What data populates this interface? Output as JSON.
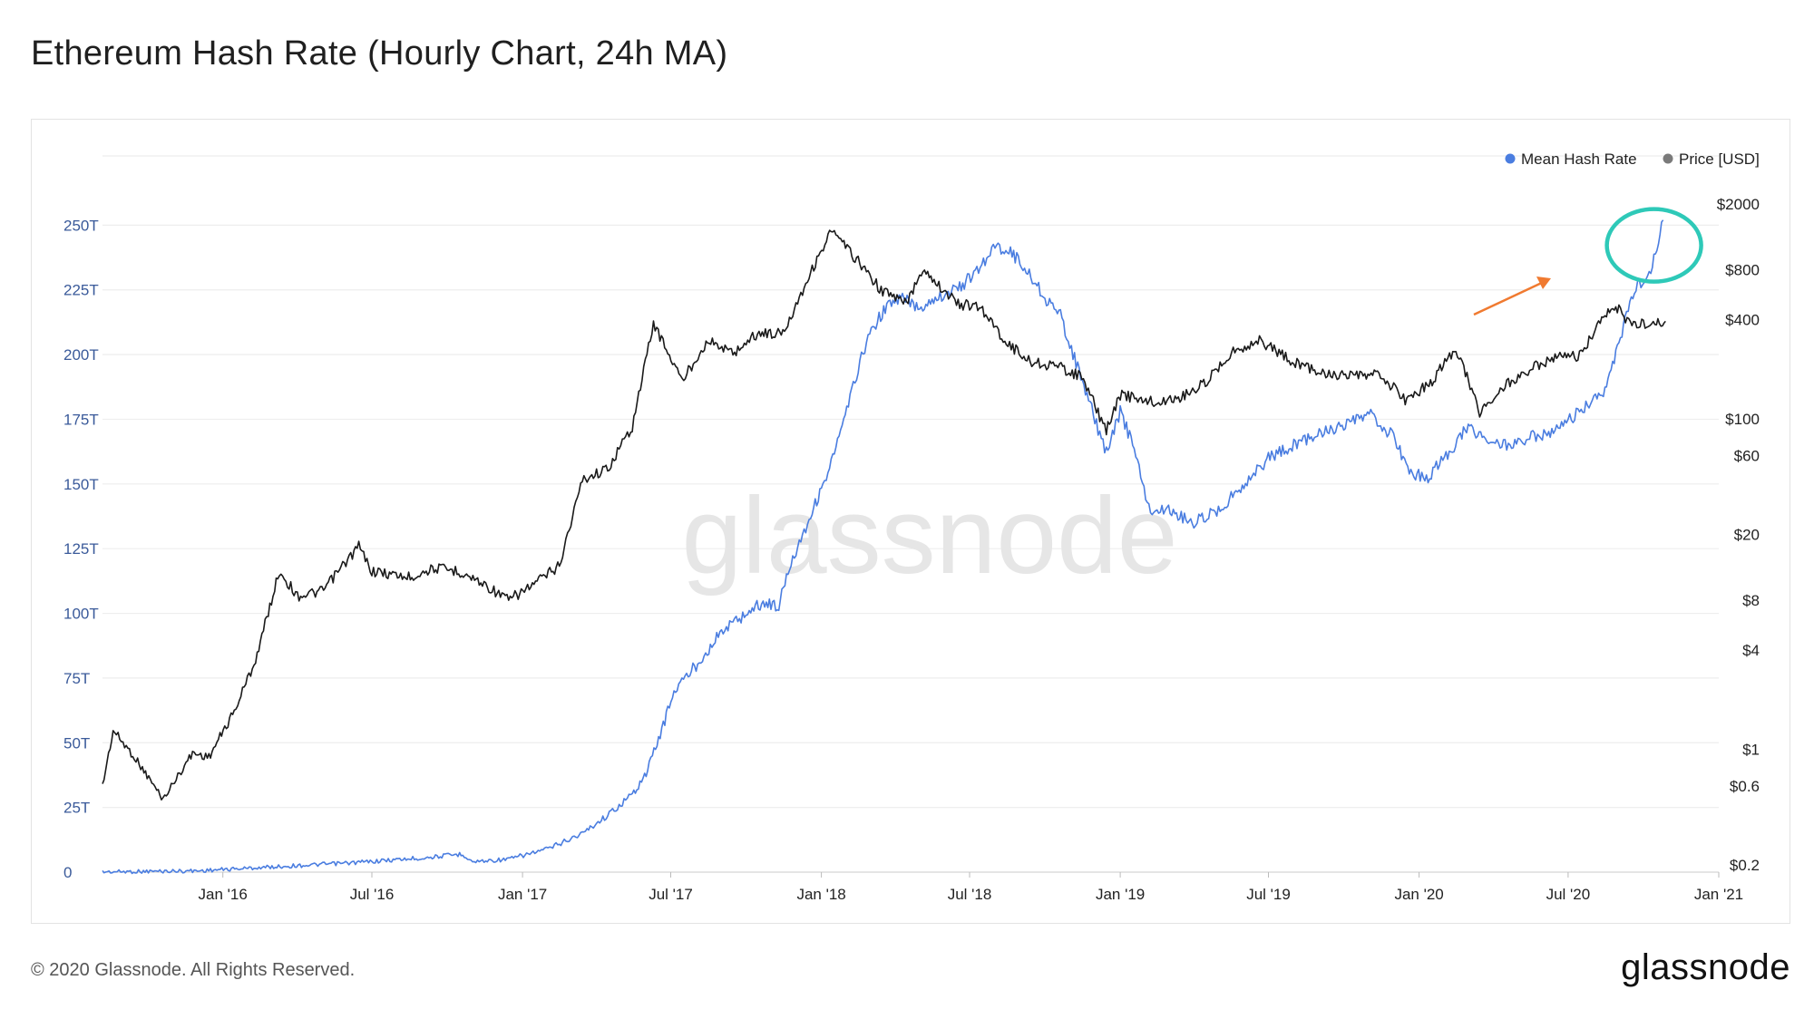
{
  "page": {
    "title": "Ethereum Hash Rate (Hourly Chart, 24h MA)",
    "footer_copyright": "© 2020 Glassnode. All Rights Reserved.",
    "footer_logo": "glassnode",
    "watermark": "glassnode"
  },
  "colors": {
    "hash_rate": "#4a7de0",
    "price": "#1a1a1a",
    "grid": "#eeeeee",
    "left_axis_text": "#3a5a9a",
    "right_axis_text": "#222222",
    "highlight_circle": "#2ec9b8",
    "arrow": "#f07a30"
  },
  "legend": [
    {
      "label": "Mean Hash Rate",
      "color": "#4a7de0"
    },
    {
      "label": "Price [USD]",
      "color": "#7a7a7a"
    }
  ],
  "chart_data": {
    "type": "line",
    "x_axis": {
      "type": "date",
      "range": [
        "2015-08-07",
        "2021-01-01"
      ],
      "ticks": [
        {
          "date": "2016-01-01",
          "label": "Jan '16"
        },
        {
          "date": "2016-07-01",
          "label": "Jul '16"
        },
        {
          "date": "2017-01-01",
          "label": "Jan '17"
        },
        {
          "date": "2017-07-01",
          "label": "Jul '17"
        },
        {
          "date": "2018-01-01",
          "label": "Jan '18"
        },
        {
          "date": "2018-07-01",
          "label": "Jul '18"
        },
        {
          "date": "2019-01-01",
          "label": "Jan '19"
        },
        {
          "date": "2019-07-01",
          "label": "Jul '19"
        },
        {
          "date": "2020-01-01",
          "label": "Jan '20"
        },
        {
          "date": "2020-07-01",
          "label": "Jul '20"
        },
        {
          "date": "2021-01-01",
          "label": "Jan '21"
        }
      ]
    },
    "y_left": {
      "scale": "linear",
      "ylim": [
        0,
        275
      ],
      "ticks": [
        0,
        25,
        50,
        75,
        100,
        125,
        150,
        175,
        200,
        225,
        250
      ],
      "tick_labels": [
        "0",
        "25T",
        "50T",
        "75T",
        "100T",
        "125T",
        "150T",
        "175T",
        "200T",
        "225T",
        "250T"
      ]
    },
    "y_right": {
      "scale": "log",
      "ticks": [
        {
          "value": 0.2,
          "label": "$0.2"
        },
        {
          "value": 0.6,
          "label": "$0.6"
        },
        {
          "value": 1,
          "label": "$1"
        },
        {
          "value": 4,
          "label": "$4"
        },
        {
          "value": 8,
          "label": "$8"
        },
        {
          "value": 20,
          "label": "$20"
        },
        {
          "value": 60,
          "label": "$60"
        },
        {
          "value": 100,
          "label": "$100"
        },
        {
          "value": 400,
          "label": "$400"
        },
        {
          "value": 800,
          "label": "$800"
        },
        {
          "value": 2000,
          "label": "$2000"
        }
      ]
    },
    "series": [
      {
        "name": "Mean Hash Rate",
        "axis": "left",
        "unit": "TH/s",
        "points": [
          [
            "2015-08-07",
            0.1
          ],
          [
            "2015-12-01",
            0.5
          ],
          [
            "2016-03-01",
            2
          ],
          [
            "2016-06-01",
            3.5
          ],
          [
            "2016-09-01",
            5.5
          ],
          [
            "2016-10-20",
            7
          ],
          [
            "2016-11-01",
            4
          ],
          [
            "2016-12-15",
            5
          ],
          [
            "2017-02-01",
            9
          ],
          [
            "2017-03-15",
            15
          ],
          [
            "2017-04-15",
            22
          ],
          [
            "2017-05-15",
            30
          ],
          [
            "2017-06-01",
            38
          ],
          [
            "2017-06-20",
            55
          ],
          [
            "2017-07-05",
            70
          ],
          [
            "2017-08-01",
            80
          ],
          [
            "2017-09-01",
            93
          ],
          [
            "2017-10-01",
            100
          ],
          [
            "2017-10-20",
            104
          ],
          [
            "2017-11-10",
            103
          ],
          [
            "2017-11-25",
            120
          ],
          [
            "2017-12-15",
            135
          ],
          [
            "2018-01-01",
            148
          ],
          [
            "2018-01-15",
            160
          ],
          [
            "2018-02-01",
            178
          ],
          [
            "2018-02-15",
            195
          ],
          [
            "2018-03-01",
            208
          ],
          [
            "2018-03-20",
            218
          ],
          [
            "2018-04-10",
            222
          ],
          [
            "2018-05-01",
            218
          ],
          [
            "2018-05-20",
            222
          ],
          [
            "2018-06-15",
            225
          ],
          [
            "2018-07-10",
            232
          ],
          [
            "2018-08-01",
            242
          ],
          [
            "2018-08-20",
            240
          ],
          [
            "2018-09-10",
            232
          ],
          [
            "2018-10-01",
            222
          ],
          [
            "2018-10-20",
            215
          ],
          [
            "2018-11-10",
            195
          ],
          [
            "2018-12-01",
            175
          ],
          [
            "2018-12-15",
            162
          ],
          [
            "2019-01-01",
            178
          ],
          [
            "2019-01-20",
            162
          ],
          [
            "2019-02-05",
            140
          ],
          [
            "2019-03-01",
            140
          ],
          [
            "2019-04-01",
            135
          ],
          [
            "2019-05-01",
            140
          ],
          [
            "2019-06-01",
            150
          ],
          [
            "2019-07-01",
            160
          ],
          [
            "2019-08-01",
            165
          ],
          [
            "2019-09-01",
            170
          ],
          [
            "2019-10-01",
            172
          ],
          [
            "2019-11-01",
            177
          ],
          [
            "2019-12-01",
            168
          ],
          [
            "2019-12-20",
            155
          ],
          [
            "2020-01-10",
            152
          ],
          [
            "2020-02-01",
            160
          ],
          [
            "2020-03-01",
            172
          ],
          [
            "2020-03-20",
            168
          ],
          [
            "2020-04-15",
            165
          ],
          [
            "2020-05-15",
            168
          ],
          [
            "2020-06-15",
            170
          ],
          [
            "2020-07-15",
            178
          ],
          [
            "2020-08-15",
            185
          ],
          [
            "2020-09-01",
            205
          ],
          [
            "2020-09-20",
            225
          ],
          [
            "2020-10-10",
            232
          ],
          [
            "2020-10-25",
            252
          ]
        ]
      },
      {
        "name": "Price [USD]",
        "axis": "right",
        "unit": "USD",
        "points": [
          [
            "2015-08-07",
            0.6
          ],
          [
            "2015-08-20",
            1.3
          ],
          [
            "2015-09-15",
            0.9
          ],
          [
            "2015-10-20",
            0.5
          ],
          [
            "2015-11-25",
            0.95
          ],
          [
            "2015-12-15",
            0.9
          ],
          [
            "2016-01-15",
            1.7
          ],
          [
            "2016-02-10",
            3.5
          ],
          [
            "2016-03-10",
            12
          ],
          [
            "2016-04-01",
            8.5
          ],
          [
            "2016-05-01",
            9
          ],
          [
            "2016-06-15",
            17
          ],
          [
            "2016-07-01",
            12
          ],
          [
            "2016-08-15",
            11
          ],
          [
            "2016-09-15",
            12.5
          ],
          [
            "2016-10-15",
            12
          ],
          [
            "2016-11-15",
            10
          ],
          [
            "2016-12-15",
            8
          ],
          [
            "2017-01-15",
            10
          ],
          [
            "2017-02-15",
            13
          ],
          [
            "2017-03-15",
            43
          ],
          [
            "2017-04-15",
            50
          ],
          [
            "2017-05-15",
            90
          ],
          [
            "2017-06-10",
            380
          ],
          [
            "2017-07-15",
            170
          ],
          [
            "2017-08-15",
            300
          ],
          [
            "2017-09-15",
            250
          ],
          [
            "2017-10-15",
            330
          ],
          [
            "2017-11-15",
            330
          ],
          [
            "2017-12-15",
            700
          ],
          [
            "2018-01-13",
            1380
          ],
          [
            "2018-02-15",
            900
          ],
          [
            "2018-03-15",
            600
          ],
          [
            "2018-04-15",
            500
          ],
          [
            "2018-05-05",
            820
          ],
          [
            "2018-06-15",
            500
          ],
          [
            "2018-07-15",
            470
          ],
          [
            "2018-08-15",
            290
          ],
          [
            "2018-09-15",
            220
          ],
          [
            "2018-10-15",
            210
          ],
          [
            "2018-11-15",
            180
          ],
          [
            "2018-12-15",
            85
          ],
          [
            "2019-01-01",
            140
          ],
          [
            "2019-02-15",
            125
          ],
          [
            "2019-03-15",
            135
          ],
          [
            "2019-04-15",
            165
          ],
          [
            "2019-05-15",
            250
          ],
          [
            "2019-06-20",
            300
          ],
          [
            "2019-08-01",
            220
          ],
          [
            "2019-09-15",
            185
          ],
          [
            "2019-10-15",
            180
          ],
          [
            "2019-11-15",
            185
          ],
          [
            "2019-12-15",
            130
          ],
          [
            "2020-01-15",
            165
          ],
          [
            "2020-02-15",
            270
          ],
          [
            "2020-03-15",
            110
          ],
          [
            "2020-04-15",
            160
          ],
          [
            "2020-05-15",
            200
          ],
          [
            "2020-06-15",
            235
          ],
          [
            "2020-07-15",
            240
          ],
          [
            "2020-08-15",
            420
          ],
          [
            "2020-09-01",
            470
          ],
          [
            "2020-09-15",
            370
          ],
          [
            "2020-10-15",
            380
          ],
          [
            "2020-10-28",
            390
          ]
        ]
      }
    ],
    "annotations": [
      {
        "type": "circle",
        "color": "#2ec9b8",
        "around": "Mean Hash Rate peak, Oct 2020"
      },
      {
        "type": "arrow",
        "color": "#f07a30",
        "pointing_to": "Mean Hash Rate peak, Oct 2020"
      }
    ],
    "grid": true,
    "legend_position": "top-right"
  }
}
